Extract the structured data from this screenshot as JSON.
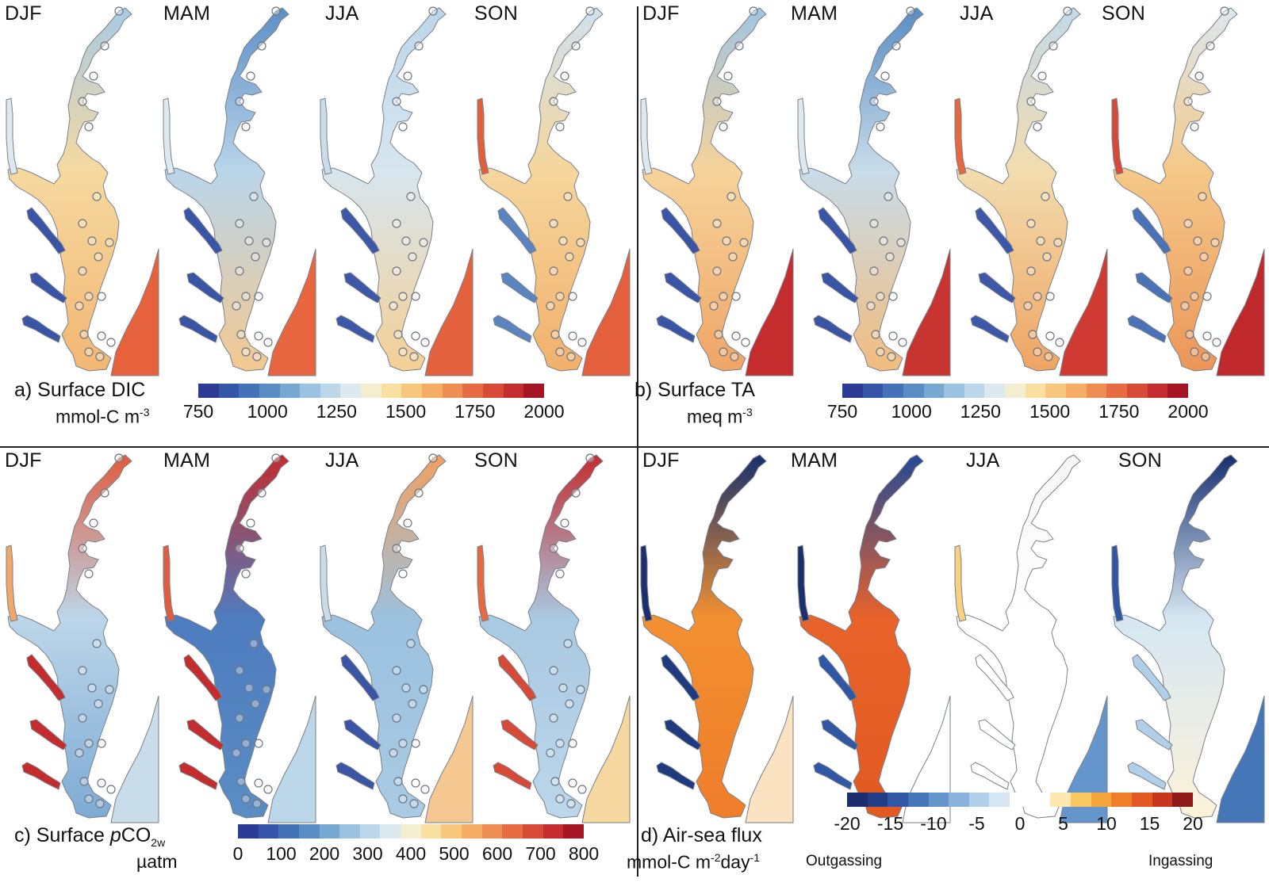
{
  "seasons": [
    "DJF",
    "MAM",
    "JJA",
    "SON"
  ],
  "panels": [
    {
      "id": "a",
      "title": "a) Surface DIC",
      "unit": "mmol-C m",
      "unit_sup": "-3",
      "ticks": [
        "750",
        "1000",
        "1250",
        "1500",
        "1750",
        "2000"
      ],
      "colorbar": [
        "#2b3b96",
        "#3555a8",
        "#4472b6",
        "#5a8dc4",
        "#77a8d2",
        "#9bc2e0",
        "#bdd7ea",
        "#dde9f0",
        "#f4eed0",
        "#f9dfa0",
        "#f8c77e",
        "#f5ad66",
        "#ef8e52",
        "#e76c43",
        "#d84a38",
        "#c42c2e",
        "#a51523"
      ],
      "season_maps": [
        {
          "season": "DJF",
          "upper": "#a9cae3",
          "mid": "#f6d9a0",
          "low": "#f3b673",
          "ocean": "#e6623d",
          "side": "#dde9f0",
          "tribs": "#3b55a6"
        },
        {
          "season": "MAM",
          "upper": "#5c8fc6",
          "mid": "#b9d5ea",
          "low": "#f3c890",
          "ocean": "#e8663f",
          "side": "#dde9f0",
          "tribs": "#3b55a6"
        },
        {
          "season": "JJA",
          "upper": "#bcd6ea",
          "mid": "#d7e6ef",
          "low": "#f5cf95",
          "ocean": "#e4613d",
          "side": "#c8dcea",
          "tribs": "#3d58a8"
        },
        {
          "season": "SON",
          "upper": "#cfe1ee",
          "mid": "#f6d69c",
          "low": "#f1b06c",
          "ocean": "#e4603c",
          "side": "#e35f3b",
          "tribs": "#5a85c0"
        }
      ]
    },
    {
      "id": "b",
      "title": "b) Surface TA",
      "unit": "meq m",
      "unit_sup": "-3",
      "ticks": [
        "750",
        "1000",
        "1250",
        "1500",
        "1750",
        "2000"
      ],
      "colorbar": [
        "#2b3b96",
        "#3555a8",
        "#4472b6",
        "#5a8dc4",
        "#77a8d2",
        "#9bc2e0",
        "#bdd7ea",
        "#dde9f0",
        "#f4eed0",
        "#f9dfa0",
        "#f8c77e",
        "#f5ad66",
        "#ef8e52",
        "#e76c43",
        "#d84a38",
        "#c42c2e",
        "#a51523"
      ],
      "season_maps": [
        {
          "season": "DJF",
          "upper": "#a0c4e1",
          "mid": "#f6d39a",
          "low": "#f0a566",
          "ocean": "#c42c2e",
          "side": "#dde9f0",
          "tribs": "#3b55a6"
        },
        {
          "season": "MAM",
          "upper": "#5a8dc4",
          "mid": "#c8dcea",
          "low": "#f3bc7d",
          "ocean": "#c83430",
          "side": "#dde9f0",
          "tribs": "#3b55a6"
        },
        {
          "season": "JJA",
          "upper": "#c3d9ea",
          "mid": "#f2dcae",
          "low": "#f0a463",
          "ocean": "#cf3b32",
          "side": "#e8683f",
          "tribs": "#3d58a8"
        },
        {
          "season": "SON",
          "upper": "#dce8ef",
          "mid": "#f5c888",
          "low": "#ec9658",
          "ocean": "#c0292c",
          "side": "#d84a38",
          "tribs": "#4a72b6"
        }
      ]
    },
    {
      "id": "c",
      "title": "c) Surface ",
      "title_italic": "p",
      "title_rest": "CO",
      "title_sub": "2w",
      "unit": "µatm",
      "unit_sup": "",
      "ticks": [
        "0",
        "100",
        "200",
        "300",
        "400",
        "500",
        "600",
        "700",
        "800"
      ],
      "colorbar": [
        "#2b3b96",
        "#3555a8",
        "#4472b6",
        "#5a8dc4",
        "#77a8d2",
        "#9bc2e0",
        "#bdd7ea",
        "#dde9f0",
        "#f4eed0",
        "#f9dfa0",
        "#f8c77e",
        "#f5ad66",
        "#ef8e52",
        "#e76c43",
        "#d84a38",
        "#c42c2e",
        "#a51523"
      ],
      "season_maps": [
        {
          "season": "DJF",
          "upper": "#e05c3e",
          "mid": "#bcd6ea",
          "low": "#7eabd4",
          "ocean": "#c8dcea",
          "side": "#f2a76a",
          "tribs": "#c42c2e"
        },
        {
          "season": "MAM",
          "upper": "#c42c2e",
          "mid": "#4d7cbf",
          "low": "#5a8dc4",
          "ocean": "#bcd6ea",
          "side": "#e05c3e",
          "tribs": "#c42c2e"
        },
        {
          "season": "JJA",
          "upper": "#f0a060",
          "mid": "#9bc2e0",
          "low": "#a9cae3",
          "ocean": "#f4c890",
          "side": "#c8dcea",
          "tribs": "#3b55a6"
        },
        {
          "season": "SON",
          "upper": "#c42c2e",
          "mid": "#a9cae3",
          "low": "#bcd6ea",
          "ocean": "#f6d7a0",
          "side": "#e8683f",
          "tribs": "#d84a38"
        }
      ]
    },
    {
      "id": "d",
      "title": "d) Air-sea flux",
      "unit": "mmol-C m",
      "unit_sup": "-2",
      "unit_rest": "day",
      "unit_sup2": "-1",
      "ticks": [
        "-20",
        "-15",
        "-10",
        "-5",
        "0",
        "5",
        "10",
        "15",
        "20"
      ],
      "end_left": "Outgassing",
      "end_right": "Ingassing",
      "colorbar": [
        "#1b2f6e",
        "#243d87",
        "#2f57a3",
        "#4577b8",
        "#6596cb",
        "#89b3da",
        "#b0cfe8",
        "#d6e7f3",
        "#ffffff",
        "#ffffff",
        "#fce8b0",
        "#f9c860",
        "#f5a53a",
        "#ef7d2a",
        "#e25a22",
        "#c8361e",
        "#8f1a1a"
      ],
      "season_maps": [
        {
          "season": "DJF",
          "upper": "#17306e",
          "mid": "#f39030",
          "low": "#ef7d2a",
          "ocean": "#fbe2c0",
          "side": "#1b2f6e",
          "tribs": "#1f3b80"
        },
        {
          "season": "MAM",
          "upper": "#244a96",
          "mid": "#e8622a",
          "low": "#e25a22",
          "ocean": "#ffffff",
          "side": "#1b2f6e",
          "tribs": "#2f57a3"
        },
        {
          "season": "JJA",
          "upper": "#f6f6f6",
          "mid": "#ffffff",
          "low": "#ffffff",
          "ocean": "#6596cb",
          "side": "#f9d080",
          "tribs": "#ffffff"
        },
        {
          "season": "SON",
          "upper": "#17306e",
          "mid": "#d6e7f3",
          "low": "#fdf2d8",
          "ocean": "#4577b8",
          "side": "#2f57a3",
          "tribs": "#b0cfe8"
        }
      ]
    }
  ]
}
